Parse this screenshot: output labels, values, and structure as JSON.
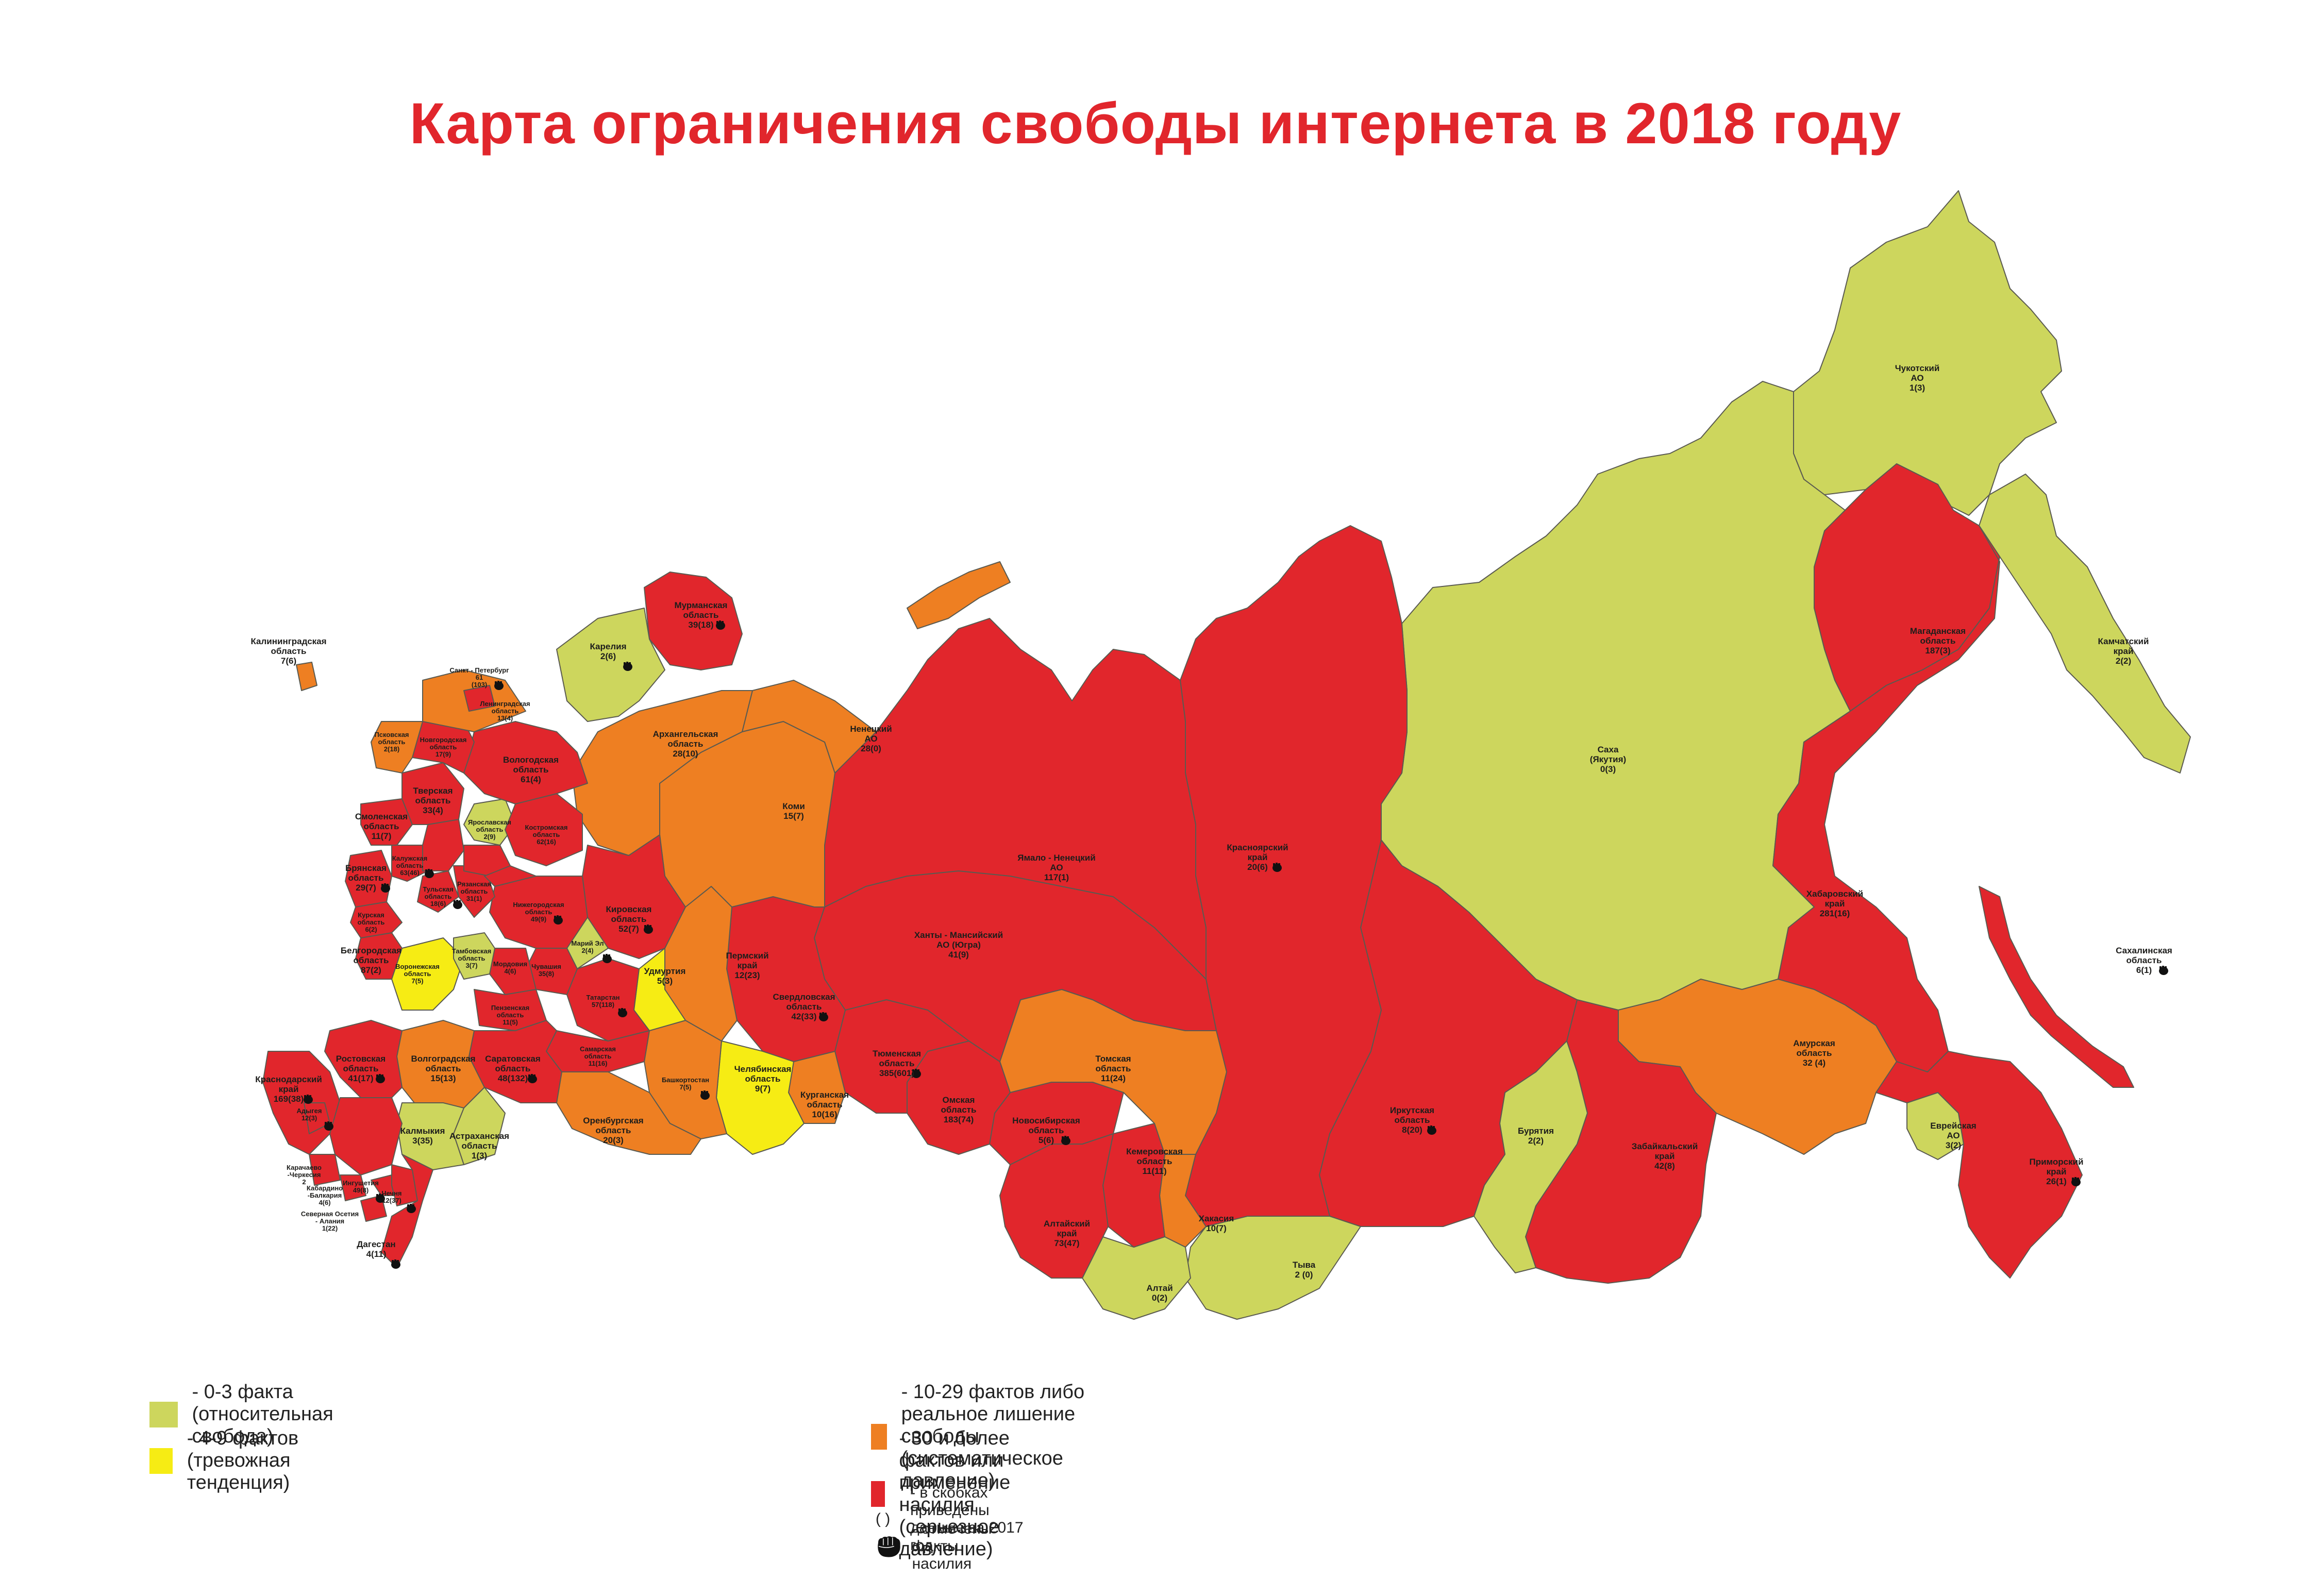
{
  "title": "Карта ограничения свободы интернета в 2018 году",
  "colors": {
    "free": "#cdd65d",
    "warning": "#f6ec14",
    "systematic": "#ee7f22",
    "serious": "#e1262c",
    "border": "#5a5a50"
  },
  "regions": {
    "kaliningrad": {
      "name": "Калининградская\nобласть",
      "value": "7(6)"
    },
    "murmansk": {
      "name": "Мурманская\nобласть",
      "value": "39(18)"
    },
    "karelia": {
      "name": "Карелия",
      "value": "2(6)"
    },
    "spb": {
      "name": "Санкт - Петербург",
      "value": "61\n(103)"
    },
    "leningrad": {
      "name": "Ленинградская\nобласть",
      "value": "13(4)"
    },
    "pskov": {
      "name": "Псковская\nобласть",
      "value": "2(18)"
    },
    "novgorod": {
      "name": "Новгородская\nобласть",
      "value": "17(9)"
    },
    "vologda": {
      "name": "Вологодская\nобласть",
      "value": "61(4)"
    },
    "tver": {
      "name": "Тверская\nобласть",
      "value": "33(4)"
    },
    "smolensk": {
      "name": "Смоленская\nобласть",
      "value": "11(7)"
    },
    "yaroslavl": {
      "name": "Ярославская\nобласть",
      "value": "2(9)"
    },
    "kostroma": {
      "name": "Костромская\nобласть",
      "value": "62(16)"
    },
    "bryansk": {
      "name": "Брянская\nобласть",
      "value": "29(7)"
    },
    "kaluga": {
      "name": "Калужская\nобласть",
      "value": "63(46)"
    },
    "tula": {
      "name": "Тульская\nобласть",
      "value": "18(6)"
    },
    "ryazan": {
      "name": "Рязанская\nобласть",
      "value": "31(1)"
    },
    "kursk": {
      "name": "Курская\nобласть",
      "value": "6(2)"
    },
    "belgorod": {
      "name": "Белгородская\nобласть",
      "value": "87(2)"
    },
    "voronezh": {
      "name": "Воронежская\nобласть",
      "value": "7(5)"
    },
    "tambov": {
      "name": "Тамбовская\nобласть",
      "value": "3(7)"
    },
    "penza": {
      "name": "Пензенская\nобласть",
      "value": "11(5)"
    },
    "mordovia": {
      "name": "Мордовия",
      "value": "4(6)"
    },
    "nizhny": {
      "name": "Нижегородская\nобласть",
      "value": "49(9)"
    },
    "chuvashia": {
      "name": "Чувашия",
      "value": "35(8)"
    },
    "mariel": {
      "name": "Марий Эл",
      "value": "2(4)"
    },
    "kirov": {
      "name": "Кировская\nобласть",
      "value": "52(7)"
    },
    "udmurtia": {
      "name": "Удмуртия",
      "value": "5(3)"
    },
    "tatarstan": {
      "name": "Татарстан",
      "value": "57(118)"
    },
    "samara": {
      "name": "Самарская\nобласть",
      "value": "11(16)"
    },
    "saratov": {
      "name": "Саратовская\nобласть",
      "value": "48(132)"
    },
    "volgograd": {
      "name": "Волгоградская\nобласть",
      "value": "15(13)"
    },
    "rostov": {
      "name": "Ростовская\nобласть",
      "value": "41(17)"
    },
    "krasnodar": {
      "name": "Краснодарский\nкрай",
      "value": "169(38)"
    },
    "adygea": {
      "name": "Адыгея",
      "value": "12(3)"
    },
    "kalmykia": {
      "name": "Калмыкия",
      "value": "3(35)"
    },
    "astrakhan": {
      "name": "Астраханская\nобласть",
      "value": "1(3)"
    },
    "karachay": {
      "name": "Карачаево\n-Черкесия",
      "value": "2"
    },
    "kabardino": {
      "name": "Кабардино\n-Балкария",
      "value": "4(6)"
    },
    "ossetia": {
      "name": "Северная Осетия\n- Алания",
      "value": "1(22)"
    },
    "ingushetia": {
      "name": "Ингушетия",
      "value": "49(8)"
    },
    "chechnya": {
      "name": "Чечня",
      "value": "12(37)"
    },
    "dagestan": {
      "name": "Дагестан",
      "value": "4(11)"
    },
    "stavropol": {
      "name": "Ставропольский\nкрай",
      "value": ""
    },
    "orenburg": {
      "name": "Оренбургская\nобласть",
      "value": "20(3)"
    },
    "bashkortostan": {
      "name": "Башкортостан",
      "value": "7(5)"
    },
    "chelyabinsk": {
      "name": "Челябинская\nобласть",
      "value": "9(7)"
    },
    "kurgan": {
      "name": "Курганская\nобласть",
      "value": "10(16)"
    },
    "perm": {
      "name": "Пермский\nкрай",
      "value": "12(23)"
    },
    "sverdlovsk": {
      "name": "Свердловская\nобласть",
      "value": "42(33)"
    },
    "arkhangelsk": {
      "name": "Архангельская\nобласть",
      "value": "28(10)"
    },
    "nenets": {
      "name": "Ненецкий\nАО",
      "value": "28(0)"
    },
    "komi": {
      "name": "Коми",
      "value": "15(7)"
    },
    "yamal": {
      "name": "Ямало - Ненецкий\nАО",
      "value": "117(1)"
    },
    "khanty": {
      "name": "Ханты - Мансийский\nАО (Югра)",
      "value": "41(9)"
    },
    "tyumen": {
      "name": "Тюменская\nобласть",
      "value": "385(601)"
    },
    "omsk": {
      "name": "Омская\nобласть",
      "value": "183(74)"
    },
    "tomsk": {
      "name": "Томская\nобласть",
      "value": "11(24)"
    },
    "novosibirsk": {
      "name": "Новосибирская\nобласть",
      "value": "5(6)"
    },
    "altai_krai": {
      "name": "Алтайский\nкрай",
      "value": "73(47)"
    },
    "kemerovo": {
      "name": "Кемеровская\nобласть",
      "value": "11(11)"
    },
    "khakassia": {
      "name": "Хакасия",
      "value": "10(7)"
    },
    "altai_rep": {
      "name": "Алтай",
      "value": "0(2)"
    },
    "tuva": {
      "name": "Тыва",
      "value": "2 (0)"
    },
    "krasnoyarsk": {
      "name": "Красноярский\nкрай",
      "value": "20(6)"
    },
    "irkutsk": {
      "name": "Иркутская\nобласть",
      "value": "8(20)"
    },
    "buryatia": {
      "name": "Бурятия",
      "value": "2(2)"
    },
    "zabaykalsky": {
      "name": "Забайкальский\nкрай",
      "value": "42(8)"
    },
    "sakha": {
      "name": "Саха\n(Якутия)",
      "value": "0(3)"
    },
    "amur": {
      "name": "Амурская\nобласть",
      "value": "32 (4)"
    },
    "jewish": {
      "name": "Еврейская\nАО",
      "value": "3(2)"
    },
    "khabarovsk": {
      "name": "Хабаровский\nкрай",
      "value": "281(16)"
    },
    "primorsky": {
      "name": "Приморский\nкрай",
      "value": "26(1)"
    },
    "magadan": {
      "name": "Магаданская\nобласть",
      "value": "187(3)"
    },
    "chukotka": {
      "name": "Чукотский\nАО",
      "value": "1(3)"
    },
    "kamchatka": {
      "name": "Камчатский\nкрай",
      "value": "2(2)"
    },
    "sakhalin": {
      "name": "Сахалинская\nобласть",
      "value": "6(1)"
    }
  },
  "legend": {
    "items": [
      {
        "key": "free",
        "label": "- 0-3 факта (относительная свобода)"
      },
      {
        "key": "warning",
        "label": "- 4-9 фактов (тревожная тенденция)"
      },
      {
        "key": "systematic",
        "label": "- 10-29 фактов либо реальное лишение свободы (систематическое давление)"
      },
      {
        "key": "serious",
        "label": "- 30 и более фактов или применение насилия (серьезное давление)"
      }
    ],
    "paren_symbol": "(  )",
    "paren_note": "- в скобках приведены данные за 2017 год",
    "fist_note": "- отмечены факты насилия"
  }
}
